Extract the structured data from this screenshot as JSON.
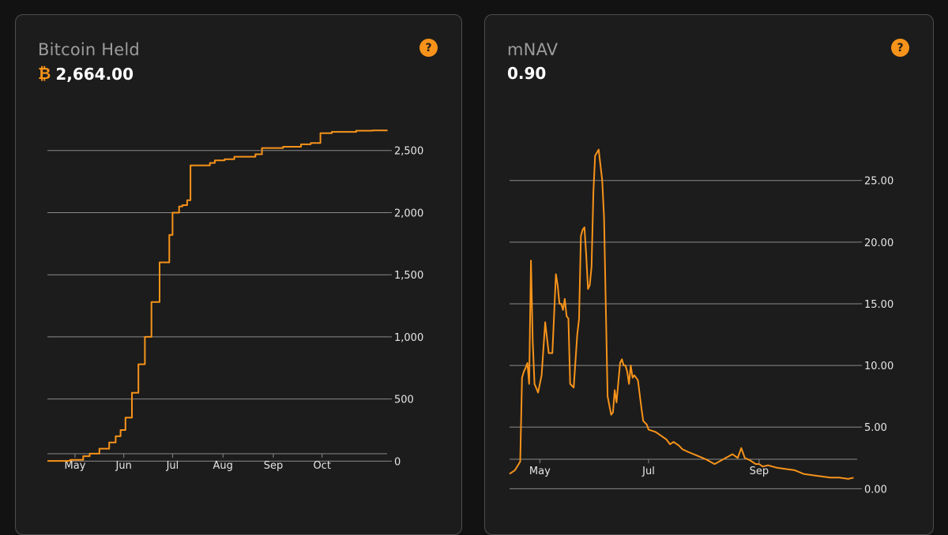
{
  "accent_color": "#f7931a",
  "bitcoin_card": {
    "title": "Bitcoin Held",
    "value": "2,664.00",
    "currency_icon": "bitcoin-icon",
    "help_label": "?"
  },
  "mnav_card": {
    "title": "mNAV",
    "value": "0.90",
    "help_label": "?"
  },
  "chart_data": [
    {
      "type": "line",
      "title": "Bitcoin Held",
      "series": [
        {
          "name": "Bitcoin Held",
          "color": "#f7931a"
        }
      ],
      "x_range": [
        0,
        209
      ],
      "ylim": [
        -150,
        2600
      ],
      "y_ticks": [
        0,
        500,
        1000,
        1500,
        2000,
        2500
      ],
      "y_tick_labels": [
        "0",
        "500",
        "1,000",
        "1,500",
        "2,000",
        "2,500"
      ],
      "x_ticks": [
        17,
        47,
        77,
        108,
        139,
        169
      ],
      "x_tick_labels": [
        "May",
        "Jun",
        "Jul",
        "Aug",
        "Sep",
        "Oct"
      ],
      "x": [
        0,
        14,
        22,
        26,
        32,
        38,
        42,
        45,
        48,
        52,
        56,
        60,
        64,
        69,
        75,
        77,
        81,
        83,
        86,
        88,
        95,
        100,
        103,
        109,
        115,
        128,
        132,
        145,
        156,
        162,
        168,
        175,
        190,
        200,
        209
      ],
      "values": [
        2,
        10,
        40,
        60,
        100,
        150,
        200,
        250,
        350,
        550,
        780,
        1000,
        1280,
        1600,
        1820,
        2000,
        2050,
        2060,
        2100,
        2380,
        2380,
        2400,
        2420,
        2430,
        2450,
        2470,
        2520,
        2530,
        2550,
        2560,
        2640,
        2650,
        2660,
        2662,
        2664
      ],
      "step": true
    },
    {
      "type": "line",
      "title": "mNAV",
      "series": [
        {
          "name": "mNAV",
          "color": "#f7931a"
        }
      ],
      "x_range": [
        0,
        195
      ],
      "ylim": [
        -1,
        28.5
      ],
      "y_ticks": [
        0,
        5,
        10,
        15,
        20,
        25
      ],
      "y_tick_labels": [
        "0.00",
        "5.00",
        "10.00",
        "15.00",
        "20.00",
        "25.00"
      ],
      "x_ticks": [
        17,
        78,
        140
      ],
      "x_tick_labels": [
        "May",
        "Jul",
        "Sep"
      ],
      "x": [
        0,
        3,
        6,
        7,
        8,
        9,
        10,
        11,
        12,
        13,
        14,
        16,
        18,
        20,
        22,
        24,
        26,
        27,
        28,
        29,
        30,
        31,
        32,
        33,
        34,
        36,
        38,
        39,
        40,
        41,
        42,
        43,
        44,
        45,
        46,
        47,
        48,
        50,
        52,
        53,
        55,
        57,
        58,
        59,
        60,
        62,
        63,
        64,
        65,
        66,
        67,
        68,
        69,
        70,
        71,
        72,
        74,
        75,
        77,
        78,
        80,
        82,
        85,
        88,
        90,
        92,
        95,
        97,
        100,
        105,
        110,
        115,
        120,
        125,
        128,
        130,
        132,
        135,
        138,
        140,
        142,
        145,
        150,
        155,
        160,
        165,
        170,
        175,
        180,
        185,
        190,
        193
      ],
      "values": [
        1.2,
        1.5,
        2.2,
        9.0,
        9.5,
        9.8,
        10.2,
        8.5,
        18.5,
        12.0,
        8.5,
        7.8,
        9.2,
        13.5,
        11.0,
        11.0,
        17.4,
        16.5,
        15.0,
        15.0,
        14.5,
        15.4,
        14.0,
        13.8,
        8.5,
        8.2,
        12.5,
        13.8,
        20.5,
        21.0,
        21.2,
        19.0,
        16.2,
        16.5,
        18.0,
        24.0,
        27.0,
        27.5,
        25.0,
        22.0,
        7.5,
        6.0,
        6.2,
        8.0,
        7.0,
        10.2,
        10.5,
        10.0,
        10.0,
        9.5,
        8.5,
        10.0,
        9.0,
        9.2,
        9.0,
        8.8,
        6.5,
        5.5,
        5.2,
        4.8,
        4.7,
        4.6,
        4.3,
        4.0,
        3.6,
        3.8,
        3.5,
        3.2,
        3.0,
        2.7,
        2.4,
        2.0,
        2.4,
        2.8,
        2.5,
        3.3,
        2.5,
        2.3,
        2.0,
        2.0,
        1.8,
        1.9,
        1.7,
        1.6,
        1.5,
        1.2,
        1.1,
        1.0,
        0.9,
        0.9,
        0.8,
        0.9
      ]
    }
  ]
}
